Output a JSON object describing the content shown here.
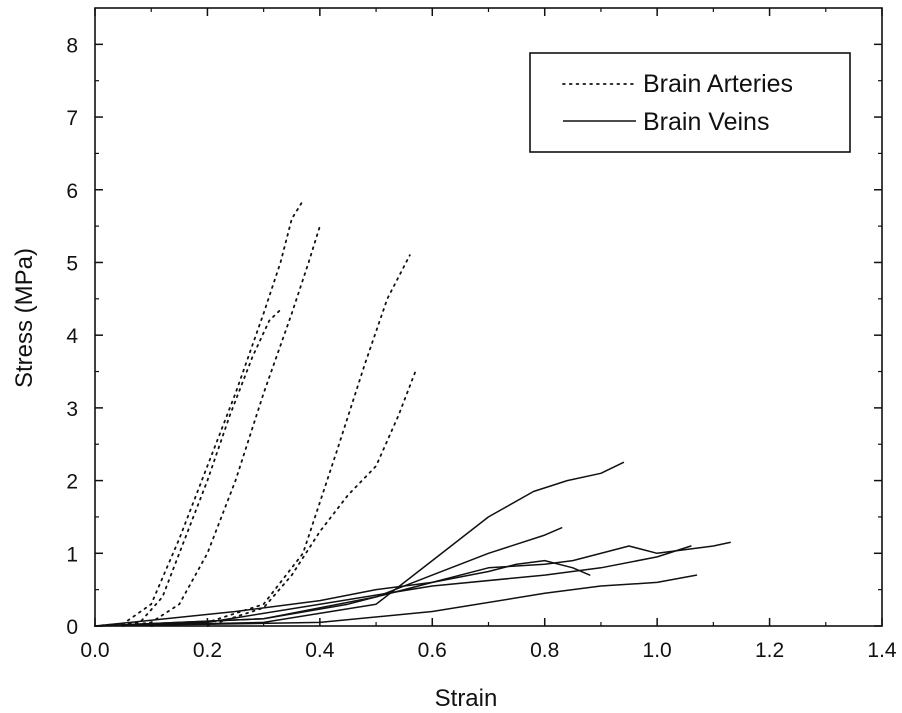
{
  "chart_data": {
    "type": "line",
    "xlabel": "Strain",
    "ylabel": "Stress (MPa)",
    "xlim": [
      0.0,
      1.4
    ],
    "ylim": [
      0,
      8.5
    ],
    "xticks": [
      0.0,
      0.2,
      0.4,
      0.6,
      0.8,
      1.0,
      1.2,
      1.4
    ],
    "xtick_labels": [
      "0.0",
      "0.2",
      "0.4",
      "0.6",
      "0.8",
      "1.0",
      "1.2",
      "1.4"
    ],
    "yticks": [
      0,
      1,
      2,
      3,
      4,
      5,
      6,
      7,
      8
    ],
    "ytick_labels": [
      "0",
      "1",
      "2",
      "3",
      "4",
      "5",
      "6",
      "7",
      "8"
    ],
    "grid": false,
    "legend_position": "top-right",
    "legend": [
      {
        "label": "Brain Arteries",
        "style": "dotted"
      },
      {
        "label": "Brain Veins",
        "style": "solid"
      }
    ],
    "groups": [
      {
        "label": "Brain Arteries",
        "style": "dotted",
        "curves": [
          {
            "x": [
              0.0,
              0.05,
              0.1,
              0.15,
              0.2,
              0.25,
              0.3,
              0.33,
              0.35,
              0.37
            ],
            "y": [
              0.0,
              0.03,
              0.3,
              1.2,
              2.2,
              3.2,
              4.3,
              5.0,
              5.6,
              5.85
            ]
          },
          {
            "x": [
              0.0,
              0.08,
              0.12,
              0.16,
              0.2,
              0.24,
              0.28,
              0.31,
              0.33
            ],
            "y": [
              0.0,
              0.05,
              0.4,
              1.2,
              2.0,
              2.9,
              3.7,
              4.2,
              4.35
            ]
          },
          {
            "x": [
              0.05,
              0.1,
              0.15,
              0.2,
              0.25,
              0.3,
              0.35,
              0.38,
              0.4
            ],
            "y": [
              0.0,
              0.05,
              0.3,
              1.0,
              2.0,
              3.2,
              4.3,
              5.0,
              5.5
            ]
          },
          {
            "x": [
              0.1,
              0.2,
              0.3,
              0.37,
              0.43,
              0.48,
              0.52,
              0.56
            ],
            "y": [
              0.0,
              0.05,
              0.3,
              1.0,
              2.4,
              3.6,
              4.5,
              5.1
            ]
          },
          {
            "x": [
              0.2,
              0.3,
              0.35,
              0.4,
              0.45,
              0.5,
              0.54,
              0.57
            ],
            "y": [
              0.0,
              0.25,
              0.7,
              1.3,
              1.8,
              2.2,
              2.9,
              3.5
            ]
          }
        ]
      },
      {
        "label": "Brain Veins",
        "style": "solid",
        "curves": [
          {
            "x": [
              0.0,
              0.2,
              0.4,
              0.6,
              0.8,
              0.9,
              1.0,
              1.06
            ],
            "y": [
              0.0,
              0.05,
              0.3,
              0.55,
              0.7,
              0.8,
              0.95,
              1.1
            ]
          },
          {
            "x": [
              0.0,
              0.3,
              0.5,
              0.6,
              0.7,
              0.78,
              0.84,
              0.9,
              0.94
            ],
            "y": [
              0.0,
              0.05,
              0.3,
              0.9,
              1.5,
              1.85,
              2.0,
              2.1,
              2.25
            ]
          },
          {
            "x": [
              0.0,
              0.3,
              0.45,
              0.6,
              0.7,
              0.8,
              0.85,
              0.95,
              1.0,
              1.1,
              1.13
            ],
            "y": [
              0.0,
              0.1,
              0.3,
              0.6,
              0.8,
              0.85,
              0.9,
              1.1,
              1.0,
              1.1,
              1.15
            ]
          },
          {
            "x": [
              0.0,
              0.3,
              0.5,
              0.6,
              0.7,
              0.8,
              0.83
            ],
            "y": [
              0.0,
              0.1,
              0.4,
              0.7,
              1.0,
              1.25,
              1.35
            ]
          },
          {
            "x": [
              0.0,
              0.25,
              0.4,
              0.5,
              0.6,
              0.7,
              0.75,
              0.8,
              0.85,
              0.88
            ],
            "y": [
              0.0,
              0.2,
              0.35,
              0.5,
              0.6,
              0.75,
              0.85,
              0.9,
              0.8,
              0.7
            ]
          },
          {
            "x": [
              0.0,
              0.4,
              0.6,
              0.8,
              0.9,
              1.0,
              1.07
            ],
            "y": [
              0.0,
              0.05,
              0.2,
              0.45,
              0.55,
              0.6,
              0.7
            ]
          }
        ]
      }
    ]
  }
}
